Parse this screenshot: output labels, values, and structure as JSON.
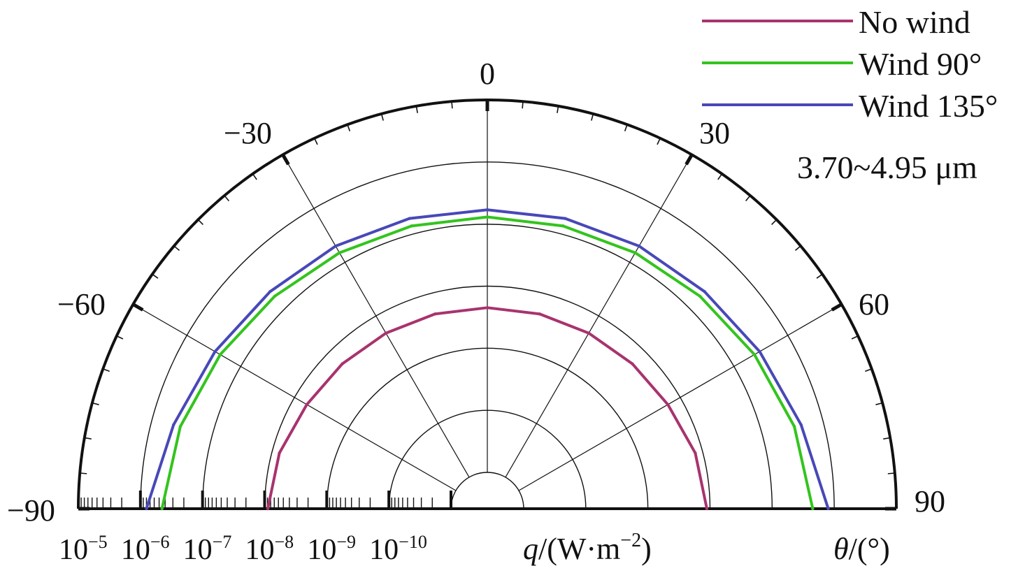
{
  "chart_data": {
    "type": "polar-line",
    "radial_axis": {
      "label_q": "q",
      "label_unit": "/(W·m",
      "label_exp": "−2",
      "label_close": ")",
      "scale": "log",
      "inner_value": 1e-11,
      "outer_value": 1e-05,
      "decades": [
        {
          "base": "10",
          "exp": "−5",
          "value": 1e-05
        },
        {
          "base": "10",
          "exp": "−6",
          "value": 1e-06
        },
        {
          "base": "10",
          "exp": "−7",
          "value": 1e-07
        },
        {
          "base": "10",
          "exp": "−8",
          "value": 1e-08
        },
        {
          "base": "10",
          "exp": "−9",
          "value": 1e-09
        },
        {
          "base": "10",
          "exp": "−10",
          "value": 1e-10
        }
      ]
    },
    "angular_axis": {
      "label_theta": "θ",
      "label_unit": "/(°)",
      "range": [
        -90,
        90
      ],
      "labels": [
        {
          "text": "−90",
          "angle": -90
        },
        {
          "text": "−60",
          "angle": -60
        },
        {
          "text": "−30",
          "angle": -30
        },
        {
          "text": "0",
          "angle": 0
        },
        {
          "text": "30",
          "angle": 30
        },
        {
          "text": "60",
          "angle": 60
        },
        {
          "text": "90",
          "angle": 90
        }
      ]
    },
    "annotation": "3.70~4.95 μm",
    "legend_position": "top-right",
    "series": [
      {
        "name": "No wind",
        "color": "#a8336e",
        "points": [
          {
            "theta": -90,
            "q": 8.9e-09
          },
          {
            "theta": -75,
            "q": 7.6e-09
          },
          {
            "theta": -60,
            "q": 5.9e-09
          },
          {
            "theta": -45,
            "q": 5.2e-09
          },
          {
            "theta": -30,
            "q": 4.8e-09
          },
          {
            "theta": -15,
            "q": 4.6e-09
          },
          {
            "theta": 0,
            "q": 4.5e-09
          },
          {
            "theta": 15,
            "q": 4.6e-09
          },
          {
            "theta": 30,
            "q": 4.8e-09
          },
          {
            "theta": 45,
            "q": 5.2e-09
          },
          {
            "theta": 60,
            "q": 5.9e-09
          },
          {
            "theta": 75,
            "q": 7.6e-09
          },
          {
            "theta": 90,
            "q": 8.9e-09
          }
        ]
      },
      {
        "name": "Wind 90°",
        "color": "#33c41e",
        "points": [
          {
            "theta": -90,
            "q": 4.5e-07
          },
          {
            "theta": -75,
            "q": 3.4e-07
          },
          {
            "theta": -60,
            "q": 2.4e-07
          },
          {
            "theta": -45,
            "q": 1.8e-07
          },
          {
            "theta": -30,
            "q": 1.5e-07
          },
          {
            "theta": -15,
            "q": 1.35e-07
          },
          {
            "theta": 0,
            "q": 1.3e-07
          },
          {
            "theta": 15,
            "q": 1.35e-07
          },
          {
            "theta": 30,
            "q": 1.5e-07
          },
          {
            "theta": 45,
            "q": 1.8e-07
          },
          {
            "theta": 60,
            "q": 2.4e-07
          },
          {
            "theta": 75,
            "q": 3.4e-07
          },
          {
            "theta": 90,
            "q": 4.5e-07
          }
        ]
      },
      {
        "name": "Wind 135°",
        "color": "#4848b8",
        "points": [
          {
            "theta": -90,
            "q": 8e-07
          },
          {
            "theta": -75,
            "q": 4.4e-07
          },
          {
            "theta": -60,
            "q": 3e-07
          },
          {
            "theta": -45,
            "q": 2.3e-07
          },
          {
            "theta": -30,
            "q": 2e-07
          },
          {
            "theta": -15,
            "q": 1.8e-07
          },
          {
            "theta": 0,
            "q": 1.7e-07
          },
          {
            "theta": 15,
            "q": 1.8e-07
          },
          {
            "theta": 30,
            "q": 2e-07
          },
          {
            "theta": 45,
            "q": 2.3e-07
          },
          {
            "theta": 60,
            "q": 3e-07
          },
          {
            "theta": 75,
            "q": 4.4e-07
          },
          {
            "theta": 90,
            "q": 8e-07
          }
        ]
      }
    ]
  }
}
